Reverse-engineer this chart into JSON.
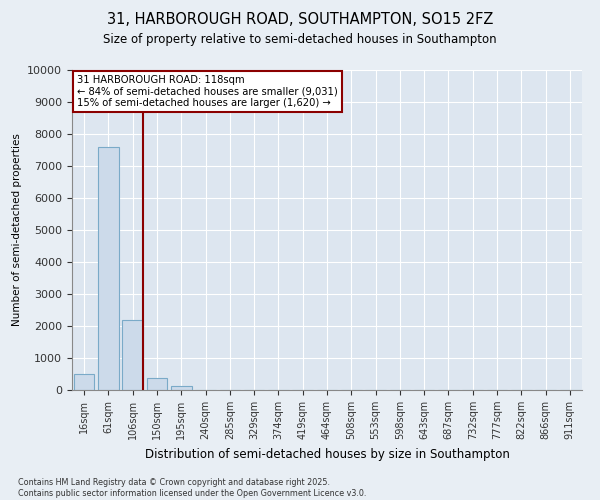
{
  "title_line1": "31, HARBOROUGH ROAD, SOUTHAMPTON, SO15 2FZ",
  "title_line2": "Size of property relative to semi-detached houses in Southampton",
  "xlabel": "Distribution of semi-detached houses by size in Southampton",
  "ylabel": "Number of semi-detached properties",
  "categories": [
    "16sqm",
    "61sqm",
    "106sqm",
    "150sqm",
    "195sqm",
    "240sqm",
    "285sqm",
    "329sqm",
    "374sqm",
    "419sqm",
    "464sqm",
    "508sqm",
    "553sqm",
    "598sqm",
    "643sqm",
    "687sqm",
    "732sqm",
    "777sqm",
    "822sqm",
    "866sqm",
    "911sqm"
  ],
  "values": [
    500,
    7600,
    2200,
    380,
    130,
    0,
    0,
    0,
    0,
    0,
    0,
    0,
    0,
    0,
    0,
    0,
    0,
    0,
    0,
    0,
    0
  ],
  "bar_color": "#ccdaea",
  "bar_edge_color": "#7aaac8",
  "annotation_title": "31 HARBOROUGH ROAD: 118sqm",
  "annotation_line1": "← 84% of semi-detached houses are smaller (9,031)",
  "annotation_line2": "15% of semi-detached houses are larger (1,620) →",
  "ylim": [
    0,
    10000
  ],
  "yticks": [
    0,
    1000,
    2000,
    3000,
    4000,
    5000,
    6000,
    7000,
    8000,
    9000,
    10000
  ],
  "background_color": "#e8eef4",
  "plot_bg_color": "#dde6f0",
  "grid_color": "#ffffff",
  "footnote": "Contains HM Land Registry data © Crown copyright and database right 2025.\nContains public sector information licensed under the Open Government Licence v3.0."
}
